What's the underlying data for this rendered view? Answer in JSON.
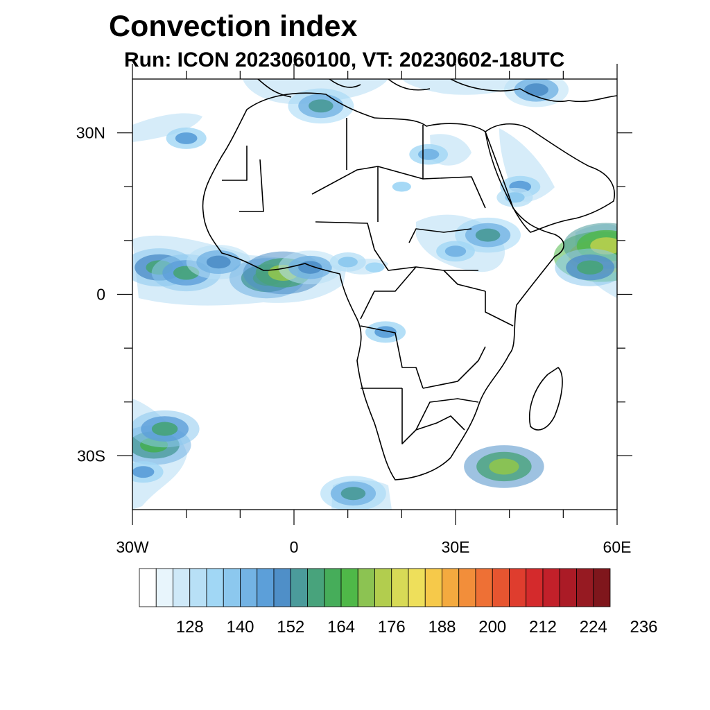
{
  "title": "Convection index",
  "subtitle": "Run: ICON 2023060100,  VT: 20230602-18UTC",
  "map": {
    "lon_range": [
      -30,
      60
    ],
    "lat_range": [
      -40,
      40
    ],
    "lon_ticks": [
      {
        "value": -30,
        "label": "30W"
      },
      {
        "value": 0,
        "label": "0"
      },
      {
        "value": 30,
        "label": "30E"
      },
      {
        "value": 60,
        "label": "60E"
      }
    ],
    "lat_ticks": [
      {
        "value": 30,
        "label": "30N"
      },
      {
        "value": 0,
        "label": "0"
      },
      {
        "value": -30,
        "label": "30S"
      }
    ],
    "minor_lon_ticks": [
      -20,
      -10,
      10,
      20,
      40,
      50
    ],
    "minor_lat_ticks": [
      20,
      10,
      -10,
      -20
    ]
  },
  "colorbar": {
    "colors": [
      "#ffffff",
      "#e8f5fc",
      "#cfe9f8",
      "#b8e0f6",
      "#a1d7f5",
      "#8cc8ee",
      "#73b3e4",
      "#5c9fd9",
      "#4f8fc8",
      "#4b9b9b",
      "#48a37c",
      "#46ad5a",
      "#4fb848",
      "#8cc352",
      "#b2cd4e",
      "#d8da56",
      "#eedf5b",
      "#f6c94a",
      "#f4aa3f",
      "#f28e3a",
      "#ee7035",
      "#e75530",
      "#df3d2e",
      "#d42a2c",
      "#c2202a",
      "#ab1b26",
      "#961a22",
      "#7f161c"
    ],
    "labels": [
      "128",
      "140",
      "152",
      "164",
      "176",
      "188",
      "200",
      "212",
      "224",
      "236"
    ]
  },
  "convection_cells": [
    {
      "lon": -25,
      "lat": 5,
      "level": 172
    },
    {
      "lon": -20,
      "lat": 4,
      "level": 168
    },
    {
      "lon": -14,
      "lat": 6,
      "level": 160
    },
    {
      "lon": -5,
      "lat": 3,
      "level": 178
    },
    {
      "lon": -2,
      "lat": 4,
      "level": 186
    },
    {
      "lon": 3,
      "lat": 5,
      "level": 158
    },
    {
      "lon": -26,
      "lat": -28,
      "level": 176
    },
    {
      "lon": -24,
      "lat": -25,
      "level": 168
    },
    {
      "lon": -28,
      "lat": -33,
      "level": 150
    },
    {
      "lon": 11,
      "lat": -37,
      "level": 162
    },
    {
      "lon": 39,
      "lat": -32,
      "level": 186
    },
    {
      "lon": 57,
      "lat": 7,
      "level": 210
    },
    {
      "lon": 58,
      "lat": 9,
      "level": 196
    },
    {
      "lon": 55,
      "lat": 5,
      "level": 170
    },
    {
      "lon": 36,
      "lat": 11,
      "level": 162
    },
    {
      "lon": 30,
      "lat": 8,
      "level": 146
    },
    {
      "lon": 10,
      "lat": 6,
      "level": 140
    },
    {
      "lon": 15,
      "lat": 5,
      "level": 136
    },
    {
      "lon": -20,
      "lat": 29,
      "level": 150
    },
    {
      "lon": 5,
      "lat": 35,
      "level": 162
    },
    {
      "lon": 25,
      "lat": 26,
      "level": 146
    },
    {
      "lon": 42,
      "lat": 20,
      "level": 150
    },
    {
      "lon": 45,
      "lat": 38,
      "level": 160
    },
    {
      "lon": 20,
      "lat": 20,
      "level": 136
    },
    {
      "lon": 41,
      "lat": 18,
      "level": 140
    },
    {
      "lon": 17,
      "lat": -7,
      "level": 150
    }
  ]
}
